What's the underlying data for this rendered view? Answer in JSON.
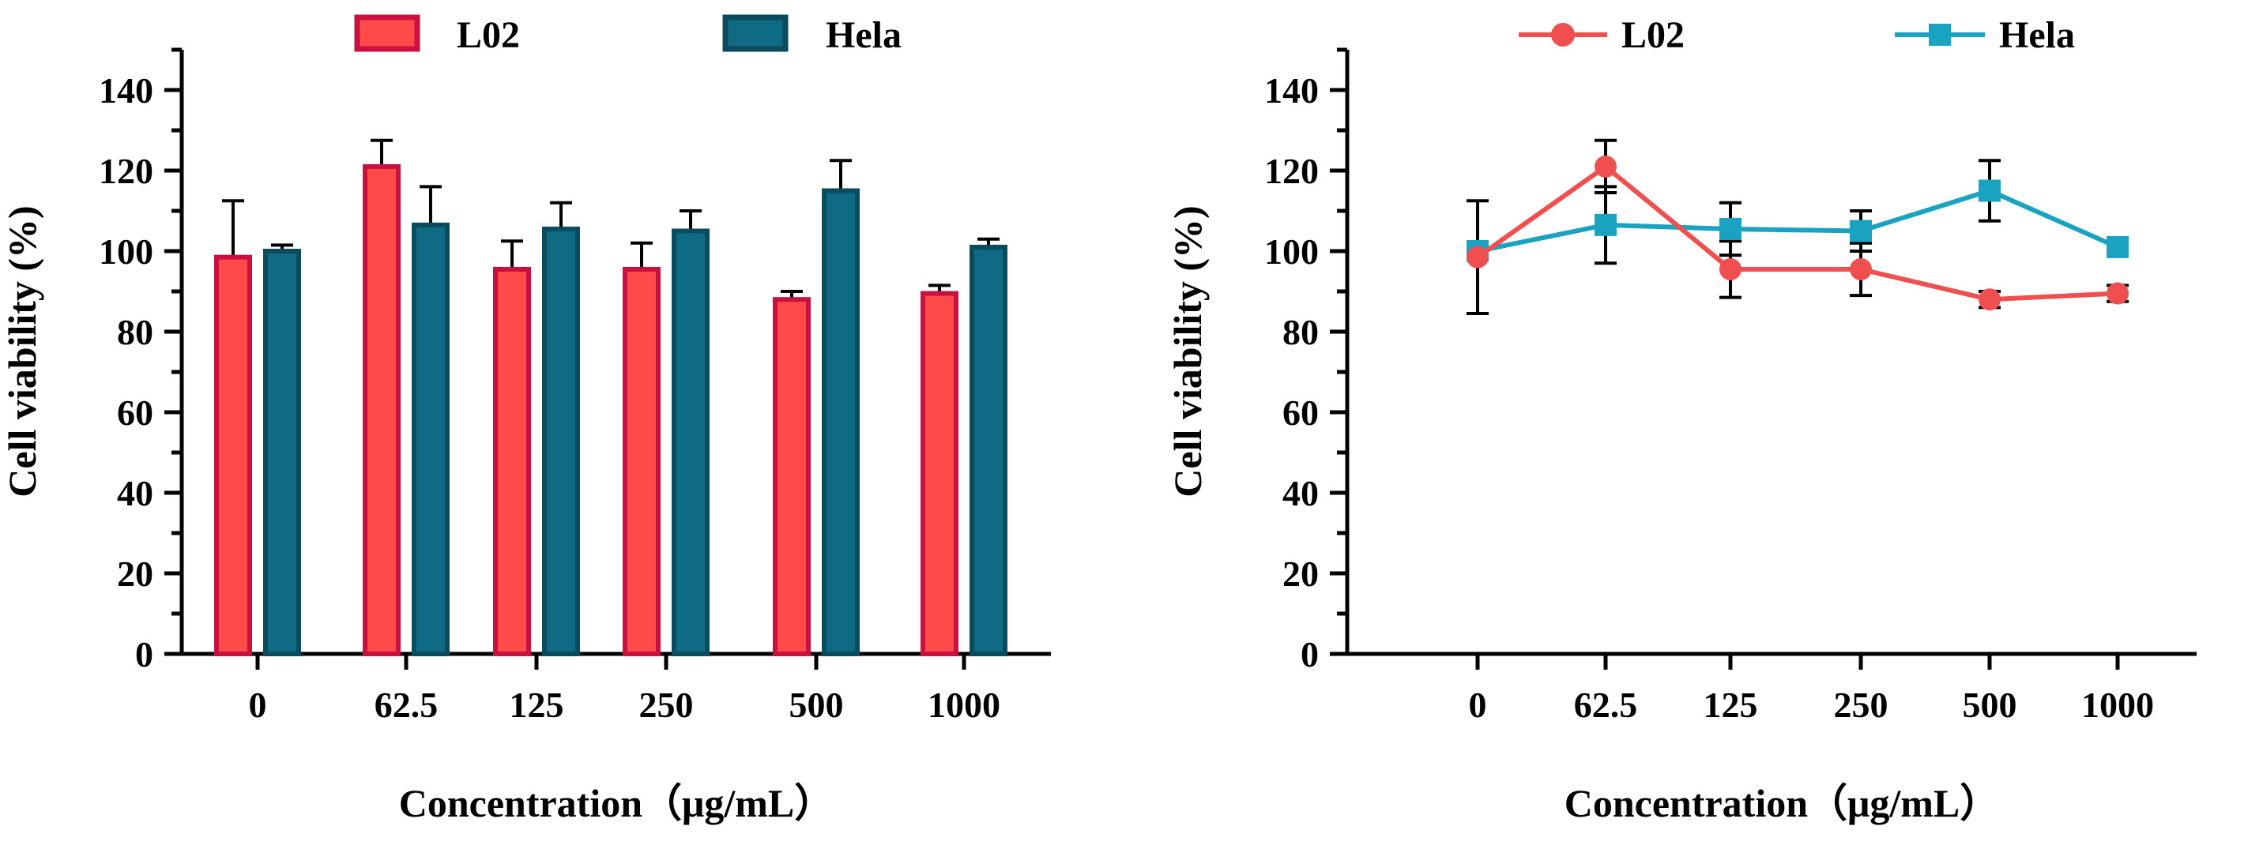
{
  "colors": {
    "l02_fill": "#ff4a4a",
    "l02_edge": "#c8113f",
    "hela_fill": "#0e6b83",
    "hela_edge": "#0b4b5e",
    "l02_line": "#f04f4f",
    "hela_line": "#1aa3c0",
    "axis": "#000000"
  },
  "chart_data": [
    {
      "type": "bar",
      "categories": [
        "0",
        "62.5",
        "125",
        "250",
        "500",
        "1000"
      ],
      "series": [
        {
          "name": "L02",
          "values": [
            98.5,
            121,
            95.5,
            95.5,
            88,
            89.5
          ],
          "errors": [
            14,
            6.5,
            7,
            6.5,
            2,
            2
          ]
        },
        {
          "name": "Hela",
          "values": [
            100,
            106.5,
            105.5,
            105,
            115,
            101
          ],
          "errors": [
            1.5,
            9.5,
            6.5,
            5,
            7.5,
            2
          ]
        }
      ],
      "xlabel": "Concentration（μg/mL）",
      "ylabel": "Cell viability (%)",
      "ylim": [
        0,
        150
      ],
      "yticks": [
        "0",
        "20",
        "40",
        "60",
        "80",
        "100",
        "120",
        "140"
      ],
      "legend_position": "top"
    },
    {
      "type": "line",
      "categories": [
        "0",
        "62.5",
        "125",
        "250",
        "500",
        "1000"
      ],
      "series": [
        {
          "name": "L02",
          "values": [
            98.5,
            121,
            95.5,
            95.5,
            88,
            89.5
          ],
          "errors": [
            14,
            6.5,
            7,
            6.5,
            2,
            2
          ]
        },
        {
          "name": "Hela",
          "values": [
            100,
            106.5,
            105.5,
            105,
            115,
            101
          ],
          "errors": [
            1.5,
            9.5,
            6.5,
            5,
            7.5,
            2
          ]
        }
      ],
      "xlabel": "Concentration（μg/mL）",
      "ylabel": "Cell viability (%)",
      "ylim": [
        0,
        150
      ],
      "yticks": [
        "0",
        "20",
        "40",
        "60",
        "80",
        "100",
        "120",
        "140"
      ],
      "legend_position": "top"
    }
  ]
}
